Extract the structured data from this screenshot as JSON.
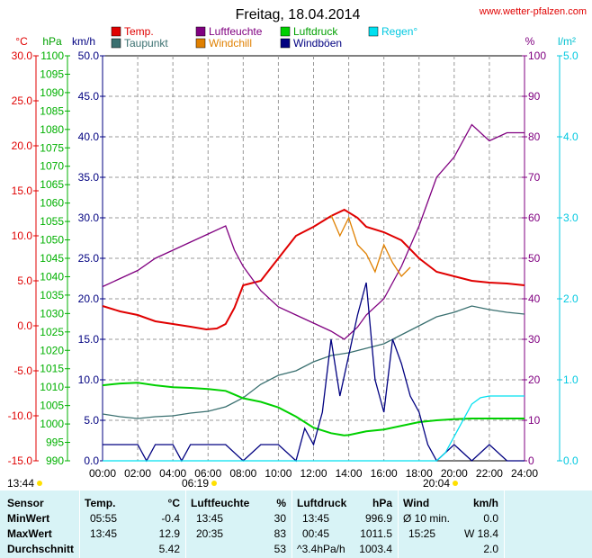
{
  "header": {
    "title": "Freitag, 18.04.2014",
    "site": "www.wetter-pfalzen.com"
  },
  "axis_units": {
    "temp": "°C",
    "press": "hPa",
    "wind": "km/h",
    "hum": "%",
    "rain": "l/m²"
  },
  "legend": [
    {
      "label": "Temp.",
      "color": "#e00000"
    },
    {
      "label": "Taupunkt",
      "color": "#3a7070"
    },
    {
      "label": "Luftfeuchte",
      "color": "#800080"
    },
    {
      "label": "Windchill",
      "color": "#e08000"
    },
    {
      "label": "Luftdruck",
      "color": "#00d000"
    },
    {
      "label": "Windböen",
      "color": "#000080"
    },
    {
      "label": "Regen°",
      "color": "#00e0f0"
    }
  ],
  "sun": {
    "moonrise": "13:44",
    "sunrise": "06:19",
    "sunset": "20:04"
  },
  "chart_data": {
    "type": "line",
    "x_ticks": [
      "00:00",
      "02:00",
      "04:00",
      "06:00",
      "08:00",
      "10:00",
      "12:00",
      "14:00",
      "16:00",
      "18:00",
      "20:00",
      "22:00",
      "24:00"
    ],
    "axes": {
      "temp_c": {
        "range": [
          -15,
          30
        ],
        "ticks": [
          "30.0",
          "25.0",
          "20.0",
          "15.0",
          "10.0",
          "5.0",
          "0.0",
          "-5.0",
          "-10.0",
          "-15.0"
        ]
      },
      "press_hpa": {
        "range": [
          990,
          1100
        ],
        "ticks": [
          "1100",
          "1095",
          "1090",
          "1085",
          "1080",
          "1075",
          "1070",
          "1065",
          "1060",
          "1055",
          "1050",
          "1045",
          "1040",
          "1035",
          "1030",
          "1025",
          "1020",
          "1015",
          "1010",
          "1005",
          "1000",
          "995",
          "990"
        ]
      },
      "wind_kmh": {
        "range": [
          0,
          50
        ],
        "ticks": [
          "50.0",
          "45.0",
          "40.0",
          "35.0",
          "30.0",
          "25.0",
          "20.0",
          "15.0",
          "10.0",
          "5.0",
          "0.0"
        ]
      },
      "hum_pct": {
        "range": [
          0,
          100
        ],
        "ticks": [
          "100",
          "90",
          "80",
          "70",
          "60",
          "50",
          "40",
          "30",
          "20",
          "10",
          "0"
        ]
      },
      "rain_lm2": {
        "range": [
          0,
          5
        ],
        "ticks": [
          "5.0",
          "4.0",
          "3.0",
          "2.0",
          "1.0",
          "0.0"
        ]
      }
    },
    "series": [
      {
        "name": "Temp.",
        "axis": "temp_c",
        "color": "#e00000",
        "points": [
          [
            0,
            2.2
          ],
          [
            1,
            1.6
          ],
          [
            2,
            1.2
          ],
          [
            3,
            0.5
          ],
          [
            4,
            0.2
          ],
          [
            5,
            -0.1
          ],
          [
            5.9,
            -0.4
          ],
          [
            6.5,
            -0.3
          ],
          [
            7,
            0.2
          ],
          [
            7.5,
            2
          ],
          [
            8,
            4.5
          ],
          [
            9,
            5
          ],
          [
            10,
            7.5
          ],
          [
            11,
            10
          ],
          [
            12,
            11
          ],
          [
            13,
            12.2
          ],
          [
            13.75,
            12.9
          ],
          [
            14.5,
            12
          ],
          [
            15,
            11
          ],
          [
            16,
            10.4
          ],
          [
            17,
            9.5
          ],
          [
            18,
            7.5
          ],
          [
            19,
            6
          ],
          [
            20,
            5.5
          ],
          [
            21,
            5
          ],
          [
            22,
            4.8
          ],
          [
            23,
            4.7
          ],
          [
            24,
            4.5
          ]
        ]
      },
      {
        "name": "Taupunkt",
        "axis": "temp_c",
        "color": "#3a7070",
        "points": [
          [
            0,
            -9.8
          ],
          [
            1,
            -10.1
          ],
          [
            2,
            -10.3
          ],
          [
            3,
            -10.1
          ],
          [
            4,
            -10
          ],
          [
            5,
            -9.7
          ],
          [
            6,
            -9.5
          ],
          [
            7,
            -9
          ],
          [
            8,
            -8
          ],
          [
            9,
            -6.5
          ],
          [
            10,
            -5.5
          ],
          [
            11,
            -5
          ],
          [
            12,
            -4
          ],
          [
            13,
            -3.3
          ],
          [
            14,
            -3
          ],
          [
            15,
            -2.5
          ],
          [
            16,
            -2
          ],
          [
            17,
            -1
          ],
          [
            18,
            0
          ],
          [
            19,
            1
          ],
          [
            20,
            1.5
          ],
          [
            21,
            2.2
          ],
          [
            22,
            1.8
          ],
          [
            23,
            1.5
          ],
          [
            24,
            1.3
          ]
        ]
      },
      {
        "name": "Luftfeuchte",
        "axis": "hum_pct",
        "color": "#800080",
        "points": [
          [
            0,
            43
          ],
          [
            1,
            45
          ],
          [
            2,
            47
          ],
          [
            3,
            50
          ],
          [
            4,
            52
          ],
          [
            5,
            54
          ],
          [
            6,
            56
          ],
          [
            7,
            58
          ],
          [
            7.5,
            52
          ],
          [
            8,
            48
          ],
          [
            9,
            42
          ],
          [
            10,
            38
          ],
          [
            11,
            36
          ],
          [
            12,
            34
          ],
          [
            13,
            32
          ],
          [
            13.75,
            30
          ],
          [
            14.5,
            33
          ],
          [
            15,
            36
          ],
          [
            16,
            40
          ],
          [
            17,
            48
          ],
          [
            18,
            58
          ],
          [
            19,
            70
          ],
          [
            20,
            75
          ],
          [
            21,
            83
          ],
          [
            22,
            79
          ],
          [
            23,
            81
          ],
          [
            24,
            81
          ]
        ]
      },
      {
        "name": "Windchill",
        "axis": "temp_c",
        "color": "#e08000",
        "points": [
          [
            13,
            12.3
          ],
          [
            13.5,
            10
          ],
          [
            14,
            12
          ],
          [
            14.5,
            9
          ],
          [
            15,
            8
          ],
          [
            15.5,
            6
          ],
          [
            16,
            9
          ],
          [
            16.5,
            7
          ],
          [
            17,
            5.5
          ],
          [
            17.5,
            6.5
          ]
        ]
      },
      {
        "name": "Luftdruck",
        "axis": "press_hpa",
        "color": "#00d000",
        "points": [
          [
            0,
            1010.5
          ],
          [
            1,
            1011
          ],
          [
            2,
            1011.2
          ],
          [
            3,
            1010.5
          ],
          [
            4,
            1010
          ],
          [
            5,
            1009.8
          ],
          [
            6,
            1009.5
          ],
          [
            7,
            1009
          ],
          [
            8,
            1007
          ],
          [
            9,
            1006
          ],
          [
            10,
            1004.5
          ],
          [
            11,
            1002
          ],
          [
            12,
            999
          ],
          [
            13,
            997.5
          ],
          [
            13.75,
            996.9
          ],
          [
            14,
            997
          ],
          [
            15,
            998
          ],
          [
            16,
            998.5
          ],
          [
            17,
            999.5
          ],
          [
            18,
            1000.5
          ],
          [
            19,
            1001
          ],
          [
            20,
            1001.3
          ],
          [
            21,
            1001.5
          ],
          [
            22,
            1001.5
          ],
          [
            23,
            1001.5
          ],
          [
            24,
            1001.5
          ]
        ]
      },
      {
        "name": "Windböen",
        "axis": "wind_kmh",
        "color": "#000080",
        "points": [
          [
            0,
            2
          ],
          [
            2,
            2
          ],
          [
            2.5,
            0
          ],
          [
            3,
            2
          ],
          [
            4,
            2
          ],
          [
            4.5,
            0
          ],
          [
            5,
            2
          ],
          [
            6,
            2
          ],
          [
            7,
            2
          ],
          [
            8,
            0
          ],
          [
            9,
            2
          ],
          [
            10,
            2
          ],
          [
            11,
            0
          ],
          [
            11.5,
            4
          ],
          [
            12,
            2
          ],
          [
            12.5,
            6
          ],
          [
            13,
            15
          ],
          [
            13.5,
            8
          ],
          [
            14,
            13
          ],
          [
            14.5,
            18
          ],
          [
            15,
            22
          ],
          [
            15.5,
            10
          ],
          [
            16,
            6
          ],
          [
            16.5,
            15
          ],
          [
            17,
            12
          ],
          [
            17.5,
            8
          ],
          [
            18,
            6
          ],
          [
            18.5,
            2
          ],
          [
            19,
            0
          ],
          [
            20,
            2
          ],
          [
            21,
            0
          ],
          [
            22,
            2
          ],
          [
            23,
            0
          ],
          [
            24,
            0
          ]
        ]
      },
      {
        "name": "Regen°",
        "axis": "rain_lm2",
        "color": "#00e0f0",
        "points": [
          [
            0,
            0
          ],
          [
            19,
            0
          ],
          [
            19.5,
            0.1
          ],
          [
            20,
            0.3
          ],
          [
            20.5,
            0.5
          ],
          [
            21,
            0.7
          ],
          [
            21.5,
            0.78
          ],
          [
            22,
            0.8
          ],
          [
            23,
            0.8
          ],
          [
            24,
            0.8
          ]
        ]
      }
    ]
  },
  "stats": {
    "headers": {
      "sensor": "Sensor",
      "temp": "Temp.",
      "temp_unit": "°C",
      "hum": "Luftfeuchte",
      "hum_unit": "%",
      "press": "Luftdruck",
      "press_unit": "hPa",
      "wind": "Wind",
      "wind_unit": "km/h"
    },
    "rows": [
      {
        "label": "MinWert",
        "temp_time": "05:55",
        "temp_val": "-0.4",
        "hum_time": "13:45",
        "hum_val": "30",
        "press_time": "13:45",
        "press_val": "996.9",
        "wind_time": "Ø 10 min.",
        "wind_val": "0.0"
      },
      {
        "label": "MaxWert",
        "temp_time": "13:45",
        "temp_val": "12.9",
        "hum_time": "20:35",
        "hum_val": "83",
        "press_time": "00:45",
        "press_val": "1011.5",
        "wind_time": "15:25",
        "wind_val": "W 18.4"
      },
      {
        "label": "Durchschnitt",
        "temp_time": "",
        "temp_val": "5.42",
        "hum_time": "",
        "hum_val": "53",
        "press_time": "^3.4hPa/h",
        "press_val": "1003.4",
        "wind_time": "",
        "wind_val": "2.0"
      }
    ]
  }
}
